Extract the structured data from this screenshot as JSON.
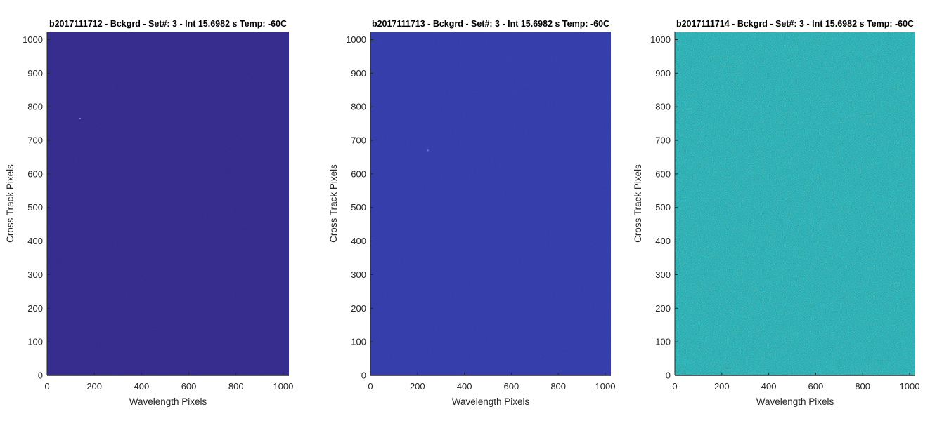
{
  "chart_data": [
    {
      "type": "heatmap",
      "title": "b2017111712 - Bckgrd - Set#: 3 - Int 15.6982 s Temp: -60C",
      "xlabel": "Wavelength Pixels",
      "ylabel": "Cross Track Pixels",
      "xlim": [
        0,
        1024
      ],
      "ylim": [
        0,
        1024
      ],
      "xticks": [
        0,
        200,
        400,
        600,
        800,
        1000
      ],
      "yticks": [
        0,
        100,
        200,
        300,
        400,
        500,
        600,
        700,
        800,
        900,
        1000
      ],
      "fill_color": "#352c8e",
      "noise_color": "#3b37a0",
      "noise_level": 0.05,
      "hot_pixels": [
        [
          140,
          765
        ]
      ]
    },
    {
      "type": "heatmap",
      "title": "b2017111713 - Bckgrd - Set#: 3 - Int 15.6982 s Temp: -60C",
      "xlabel": "Wavelength Pixels",
      "ylabel": "Cross Track Pixels",
      "xlim": [
        0,
        1024
      ],
      "ylim": [
        0,
        1024
      ],
      "xticks": [
        0,
        200,
        400,
        600,
        800,
        1000
      ],
      "yticks": [
        0,
        100,
        200,
        300,
        400,
        500,
        600,
        700,
        800,
        900,
        1000
      ],
      "fill_color": "#343daa",
      "noise_color": "#3a4ab8",
      "noise_level": 0.08,
      "hot_pixels": [
        [
          245,
          670
        ]
      ]
    },
    {
      "type": "heatmap",
      "title": "b2017111714 - Bckgrd - Set#: 3 - Int 15.6982 s Temp: -60C",
      "xlabel": "Wavelength Pixels",
      "ylabel": "Cross Track Pixels",
      "xlim": [
        0,
        1024
      ],
      "ylim": [
        0,
        1024
      ],
      "xticks": [
        0,
        200,
        400,
        600,
        800,
        1000
      ],
      "yticks": [
        0,
        100,
        200,
        300,
        400,
        500,
        600,
        700,
        800,
        900,
        1000
      ],
      "fill_color": "#20aab3",
      "noise_color": "#5fbf8c",
      "noise_level": 0.55,
      "hot_pixels": []
    }
  ]
}
